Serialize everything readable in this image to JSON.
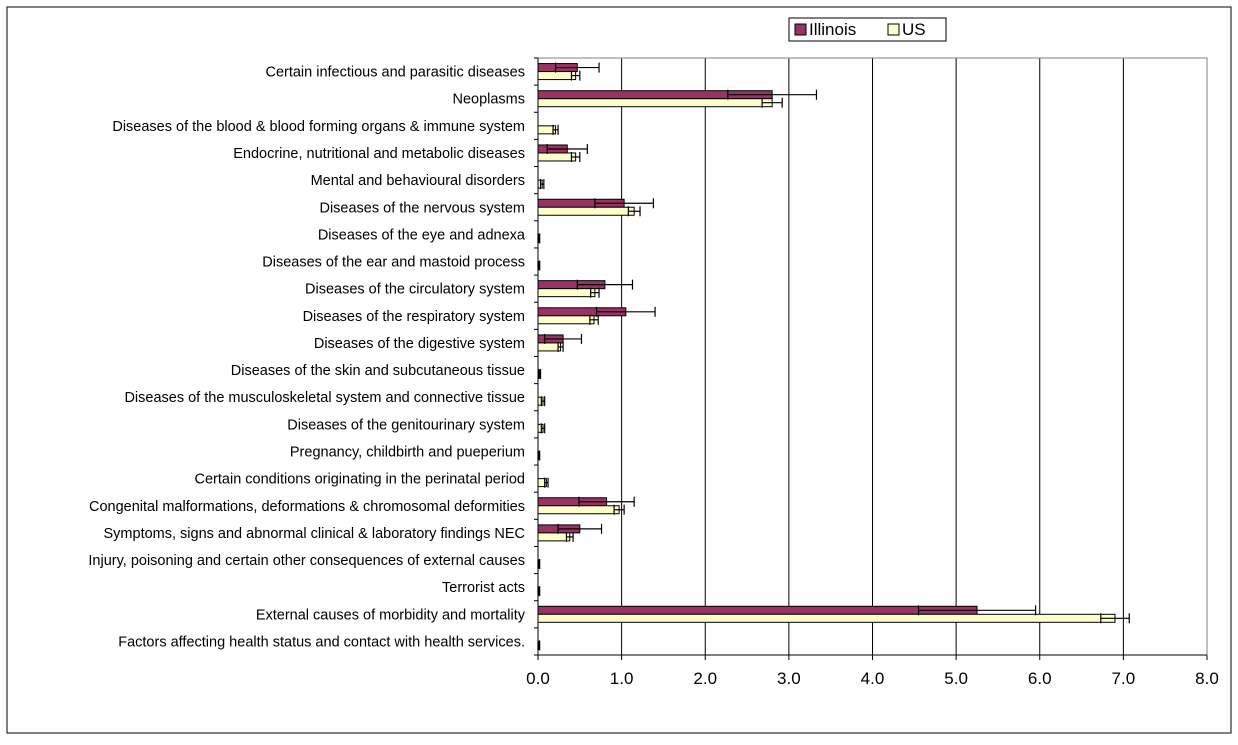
{
  "chart_data": {
    "type": "bar",
    "orientation": "horizontal",
    "title": "",
    "xlabel": "",
    "ylabel": "",
    "xlim": [
      0,
      8
    ],
    "x_ticks": [
      "0.0",
      "1.0",
      "2.0",
      "3.0",
      "4.0",
      "5.0",
      "6.0",
      "7.0",
      "8.0"
    ],
    "grid": "vertical",
    "legend_position": "top-right",
    "error_bars": true,
    "categories": [
      "Certain infectious and parasitic diseases",
      "Neoplasms",
      "Diseases of the blood & blood forming organs & immune system",
      "Endocrine, nutritional and metabolic diseases",
      "Mental and behavioural disorders",
      "Diseases of the nervous system",
      "Diseases of the eye and adnexa",
      "Diseases of the ear and mastoid process",
      "Diseases of the circulatory system",
      "Diseases of the respiratory system",
      "Diseases of the digestive system",
      "Diseases of the skin and subcutaneous tissue",
      "Diseases of the musculoskeletal system and connective tissue",
      "Diseases of the genitourinary system",
      "Pregnancy, childbirth and pueperium",
      "Certain conditions originating in the perinatal period",
      "Congenital malformations, deformations & chromosomal deformities",
      "Symptoms, signs and abnormal clinical & laboratory findings NEC",
      "Injury, poisoning and certain other consequences of external causes",
      "Terrorist acts",
      "External causes of morbidity and mortality",
      "Factors affecting health status and contact with health services."
    ],
    "series": [
      {
        "name": "Illinois",
        "color": "#993366",
        "values": [
          0.47,
          2.8,
          0,
          0.35,
          0,
          1.03,
          0,
          0,
          0.8,
          1.05,
          0.3,
          0,
          0,
          0,
          0,
          0,
          0.82,
          0.5,
          0,
          0,
          5.25,
          0
        ],
        "error": [
          0.26,
          0.53,
          0,
          0.24,
          0,
          0.35,
          0,
          0,
          0.33,
          0.35,
          0.22,
          0,
          0,
          0,
          0,
          0,
          0.33,
          0.26,
          0,
          0,
          0.7,
          0
        ]
      },
      {
        "name": "US",
        "color": "#FFFFCC",
        "values": [
          0.45,
          2.8,
          0.21,
          0.45,
          0.05,
          1.15,
          0.01,
          0.01,
          0.68,
          0.67,
          0.27,
          0.02,
          0.06,
          0.06,
          0.01,
          0.1,
          0.97,
          0.38,
          0.01,
          0.01,
          6.9,
          0.01
        ],
        "error": [
          0.05,
          0.12,
          0.03,
          0.05,
          0.02,
          0.07,
          0.01,
          0.01,
          0.05,
          0.05,
          0.03,
          0.01,
          0.02,
          0.02,
          0.01,
          0.02,
          0.06,
          0.04,
          0.01,
          0.01,
          0.17,
          0.01
        ]
      }
    ]
  }
}
